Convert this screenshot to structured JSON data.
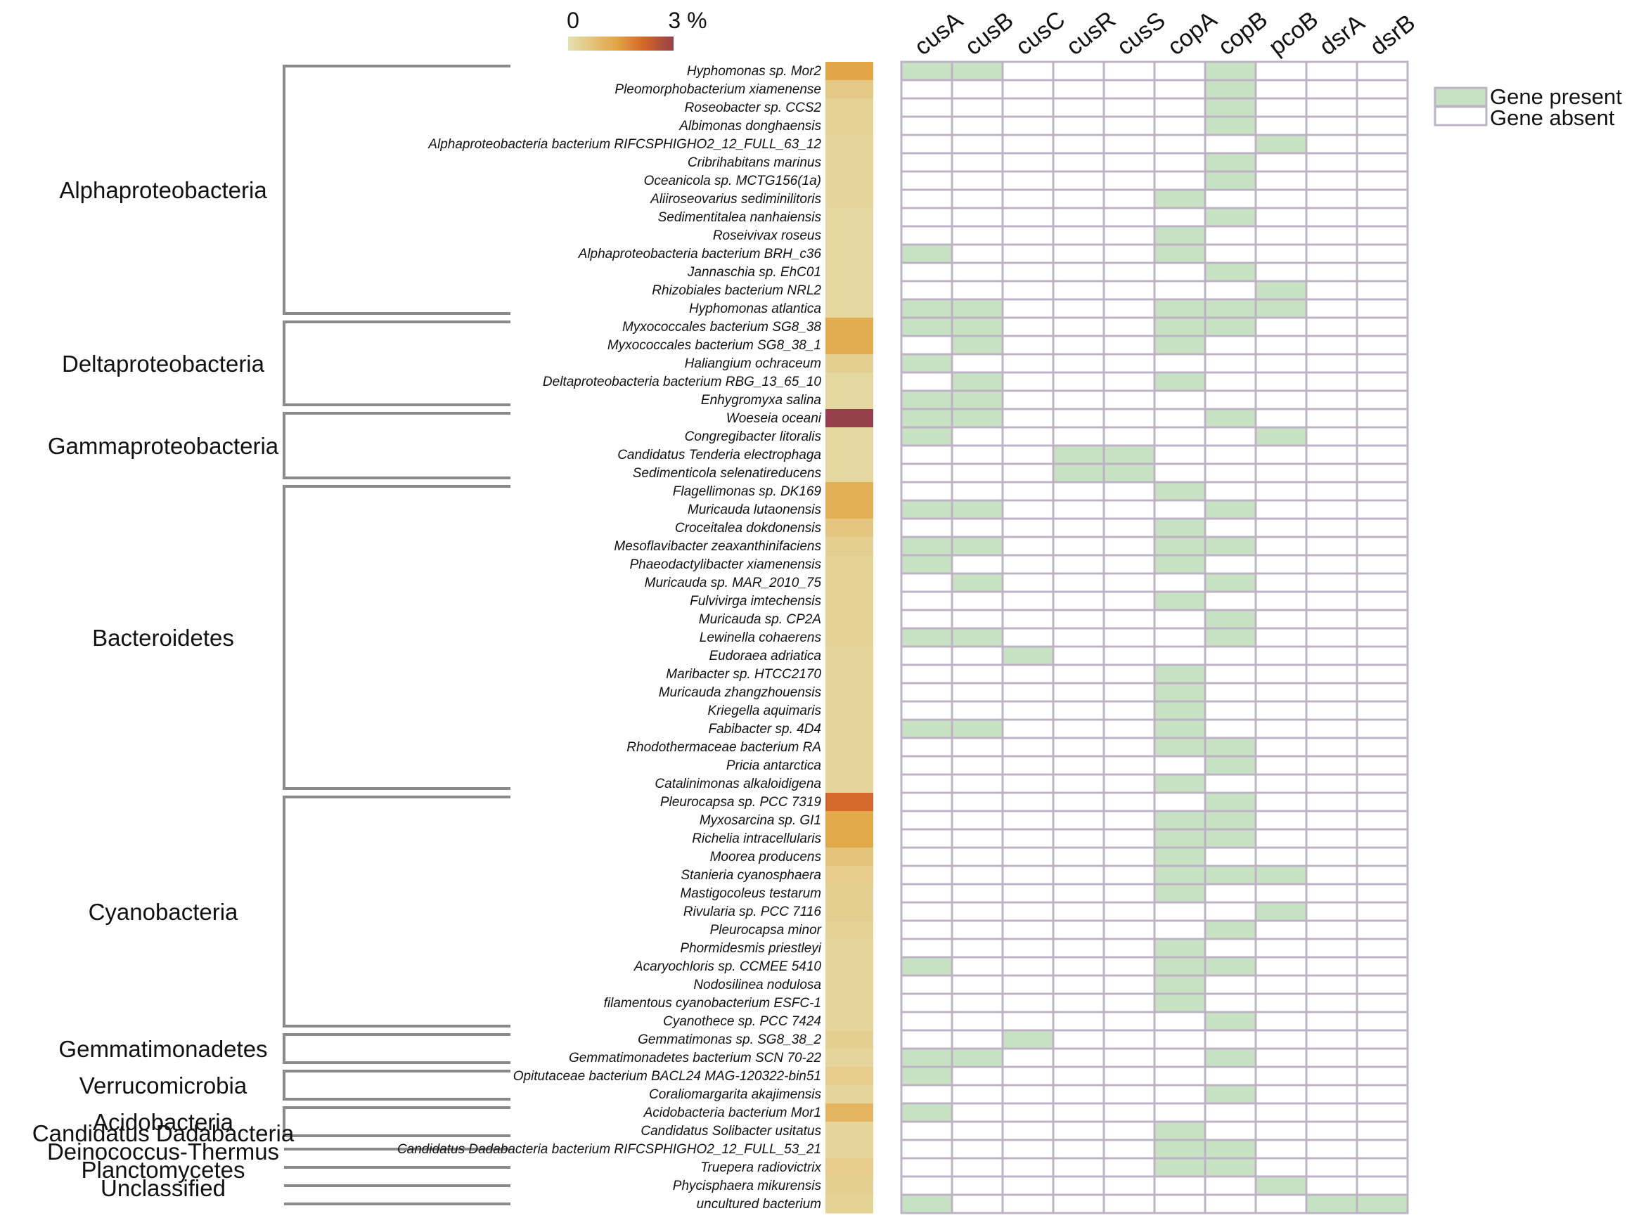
{
  "chart_data": {
    "type": "heatmap",
    "title": "",
    "color_scale": {
      "min_label": "0",
      "max_label": "3 %",
      "min": 0,
      "max": 3,
      "colors": [
        "#e6e0b0",
        "#e2a747",
        "#d4662a",
        "#94404a"
      ]
    },
    "genes": [
      "cusA",
      "cusB",
      "cusC",
      "cusR",
      "cusS",
      "copA",
      "copB",
      "pcoB",
      "dsrA",
      "dsrB"
    ],
    "legend": {
      "present_label": "Gene present",
      "absent_label": "Gene absent",
      "present_color": "#c6e2c2",
      "absent_color": "#ffffff",
      "border_color": "#bdb3c4"
    },
    "groups": [
      {
        "name": "Alphaproteobacteria",
        "first": 0,
        "last": 13
      },
      {
        "name": "Deltaproteobacteria",
        "first": 14,
        "last": 18
      },
      {
        "name": "Gammaproteobacteria",
        "first": 19,
        "last": 22
      },
      {
        "name": "Bacteroidetes",
        "first": 23,
        "last": 39
      },
      {
        "name": "Cyanobacteria",
        "first": 40,
        "last": 52
      },
      {
        "name": "Gemmatimonadetes",
        "first": 53,
        "last": 54
      },
      {
        "name": "Verrucomicrobia",
        "first": 55,
        "last": 56
      },
      {
        "name": "Acidobacteria",
        "first": 57,
        "last": 58
      },
      {
        "name": "Candidatus Dadabacteria",
        "first": 59,
        "last": 59
      },
      {
        "name": "Deinococcus-Thermus",
        "first": 60,
        "last": 60
      },
      {
        "name": "Planctomycetes",
        "first": 61,
        "last": 61
      },
      {
        "name": "Unclassified",
        "first": 62,
        "last": 62
      }
    ],
    "taxa": [
      {
        "name": "Hyphomonas sp. Mor2",
        "abundance": 1.0,
        "genes": [
          1,
          1,
          0,
          0,
          0,
          0,
          1,
          0,
          0,
          0
        ]
      },
      {
        "name": "Pleomorphobacterium xiamenense",
        "abundance": 0.4,
        "genes": [
          0,
          0,
          0,
          0,
          0,
          0,
          1,
          0,
          0,
          0
        ]
      },
      {
        "name": "Roseobacter sp. CCS2",
        "abundance": 0.25,
        "genes": [
          0,
          0,
          0,
          0,
          0,
          0,
          1,
          0,
          0,
          0
        ]
      },
      {
        "name": "Albimonas donghaensis",
        "abundance": 0.25,
        "genes": [
          0,
          0,
          0,
          0,
          0,
          0,
          1,
          0,
          0,
          0
        ]
      },
      {
        "name": "Alphaproteobacteria bacterium RIFCSPHIGHO2_12_FULL_63_12",
        "abundance": 0.2,
        "genes": [
          0,
          0,
          0,
          0,
          0,
          0,
          0,
          1,
          0,
          0
        ]
      },
      {
        "name": "Cribrihabitans marinus",
        "abundance": 0.2,
        "genes": [
          0,
          0,
          0,
          0,
          0,
          0,
          1,
          0,
          0,
          0
        ]
      },
      {
        "name": "Oceanicola sp. MCTG156(1a)",
        "abundance": 0.2,
        "genes": [
          0,
          0,
          0,
          0,
          0,
          0,
          1,
          0,
          0,
          0
        ]
      },
      {
        "name": "Aliiroseovarius sediminilitoris",
        "abundance": 0.2,
        "genes": [
          0,
          0,
          0,
          0,
          0,
          1,
          0,
          0,
          0,
          0
        ]
      },
      {
        "name": "Sedimentitalea nanhaiensis",
        "abundance": 0.15,
        "genes": [
          0,
          0,
          0,
          0,
          0,
          0,
          1,
          0,
          0,
          0
        ]
      },
      {
        "name": "Roseivivax roseus",
        "abundance": 0.15,
        "genes": [
          0,
          0,
          0,
          0,
          0,
          1,
          0,
          0,
          0,
          0
        ]
      },
      {
        "name": "Alphaproteobacteria bacterium BRH_c36",
        "abundance": 0.15,
        "genes": [
          1,
          0,
          0,
          0,
          0,
          1,
          0,
          0,
          0,
          0
        ]
      },
      {
        "name": "Jannaschia sp. EhC01",
        "abundance": 0.15,
        "genes": [
          0,
          0,
          0,
          0,
          0,
          0,
          1,
          0,
          0,
          0
        ]
      },
      {
        "name": "Rhizobiales bacterium NRL2",
        "abundance": 0.15,
        "genes": [
          0,
          0,
          0,
          0,
          0,
          0,
          0,
          1,
          0,
          0
        ]
      },
      {
        "name": "Hyphomonas atlantica",
        "abundance": 0.15,
        "genes": [
          1,
          1,
          0,
          0,
          0,
          1,
          1,
          1,
          0,
          0
        ]
      },
      {
        "name": "Myxococcales bacterium SG8_38",
        "abundance": 0.9,
        "genes": [
          1,
          1,
          0,
          0,
          0,
          1,
          1,
          0,
          0,
          0
        ]
      },
      {
        "name": "Myxococcales bacterium SG8_38_1",
        "abundance": 0.9,
        "genes": [
          0,
          1,
          0,
          0,
          0,
          1,
          0,
          0,
          0,
          0
        ]
      },
      {
        "name": "Haliangium ochraceum",
        "abundance": 0.3,
        "genes": [
          1,
          0,
          0,
          0,
          0,
          0,
          0,
          0,
          0,
          0
        ]
      },
      {
        "name": "Deltaproteobacteria bacterium RBG_13_65_10",
        "abundance": 0.15,
        "genes": [
          0,
          1,
          0,
          0,
          0,
          1,
          0,
          0,
          0,
          0
        ]
      },
      {
        "name": "Enhygromyxa salina",
        "abundance": 0.15,
        "genes": [
          1,
          1,
          0,
          0,
          0,
          0,
          0,
          0,
          0,
          0
        ]
      },
      {
        "name": "Woeseia oceani",
        "abundance": 3.0,
        "genes": [
          1,
          1,
          0,
          0,
          0,
          0,
          1,
          0,
          0,
          0
        ]
      },
      {
        "name": "Congregibacter litoralis",
        "abundance": 0.15,
        "genes": [
          1,
          0,
          0,
          0,
          0,
          0,
          0,
          1,
          0,
          0
        ]
      },
      {
        "name": "Candidatus Tenderia electrophaga",
        "abundance": 0.15,
        "genes": [
          0,
          0,
          0,
          1,
          1,
          0,
          0,
          0,
          0,
          0
        ]
      },
      {
        "name": "Sedimenticola selenatireducens",
        "abundance": 0.15,
        "genes": [
          0,
          0,
          0,
          1,
          1,
          0,
          0,
          0,
          0,
          0
        ]
      },
      {
        "name": "Flagellimonas sp. DK169",
        "abundance": 0.85,
        "genes": [
          0,
          0,
          0,
          0,
          0,
          1,
          0,
          0,
          0,
          0
        ]
      },
      {
        "name": "Muricauda lutaonensis",
        "abundance": 0.85,
        "genes": [
          1,
          1,
          0,
          0,
          0,
          0,
          1,
          0,
          0,
          0
        ]
      },
      {
        "name": "Croceitalea dokdonensis",
        "abundance": 0.45,
        "genes": [
          0,
          0,
          0,
          0,
          0,
          1,
          0,
          0,
          0,
          0
        ]
      },
      {
        "name": "Mesoflavibacter zeaxanthinifaciens",
        "abundance": 0.3,
        "genes": [
          1,
          1,
          0,
          0,
          0,
          1,
          1,
          0,
          0,
          0
        ]
      },
      {
        "name": "Phaeodactylibacter xiamenensis",
        "abundance": 0.25,
        "genes": [
          1,
          0,
          0,
          0,
          0,
          1,
          0,
          0,
          0,
          0
        ]
      },
      {
        "name": "Muricauda sp. MAR_2010_75",
        "abundance": 0.25,
        "genes": [
          0,
          1,
          0,
          0,
          0,
          0,
          1,
          0,
          0,
          0
        ]
      },
      {
        "name": "Fulvivirga imtechensis",
        "abundance": 0.25,
        "genes": [
          0,
          0,
          0,
          0,
          0,
          1,
          0,
          0,
          0,
          0
        ]
      },
      {
        "name": "Muricauda sp. CP2A",
        "abundance": 0.25,
        "genes": [
          0,
          0,
          0,
          0,
          0,
          0,
          1,
          0,
          0,
          0
        ]
      },
      {
        "name": "Lewinella cohaerens",
        "abundance": 0.25,
        "genes": [
          1,
          1,
          0,
          0,
          0,
          0,
          1,
          0,
          0,
          0
        ]
      },
      {
        "name": "Eudoraea adriatica",
        "abundance": 0.2,
        "genes": [
          0,
          0,
          1,
          0,
          0,
          0,
          0,
          0,
          0,
          0
        ]
      },
      {
        "name": "Maribacter sp. HTCC2170",
        "abundance": 0.2,
        "genes": [
          0,
          0,
          0,
          0,
          0,
          1,
          0,
          0,
          0,
          0
        ]
      },
      {
        "name": "Muricauda zhangzhouensis",
        "abundance": 0.2,
        "genes": [
          0,
          0,
          0,
          0,
          0,
          1,
          0,
          0,
          0,
          0
        ]
      },
      {
        "name": "Kriegella aquimaris",
        "abundance": 0.2,
        "genes": [
          0,
          0,
          0,
          0,
          0,
          1,
          0,
          0,
          0,
          0
        ]
      },
      {
        "name": "Fabibacter sp. 4D4",
        "abundance": 0.2,
        "genes": [
          1,
          1,
          0,
          0,
          0,
          1,
          0,
          0,
          0,
          0
        ]
      },
      {
        "name": "Rhodothermaceae bacterium RA",
        "abundance": 0.2,
        "genes": [
          0,
          0,
          0,
          0,
          0,
          1,
          1,
          0,
          0,
          0
        ]
      },
      {
        "name": "Pricia antarctica",
        "abundance": 0.2,
        "genes": [
          0,
          0,
          0,
          0,
          0,
          0,
          1,
          0,
          0,
          0
        ]
      },
      {
        "name": "Catalinimonas alkaloidigena",
        "abundance": 0.2,
        "genes": [
          0,
          0,
          0,
          0,
          0,
          1,
          0,
          0,
          0,
          0
        ]
      },
      {
        "name": "Pleurocapsa sp. PCC 7319",
        "abundance": 1.9,
        "genes": [
          0,
          0,
          0,
          0,
          0,
          0,
          1,
          0,
          0,
          0
        ]
      },
      {
        "name": "Myxosarcina sp. GI1",
        "abundance": 0.95,
        "genes": [
          0,
          0,
          0,
          0,
          0,
          1,
          1,
          0,
          0,
          0
        ]
      },
      {
        "name": "Richelia intracellularis",
        "abundance": 0.95,
        "genes": [
          0,
          0,
          0,
          0,
          0,
          1,
          1,
          0,
          0,
          0
        ]
      },
      {
        "name": "Moorea producens",
        "abundance": 0.5,
        "genes": [
          0,
          0,
          0,
          0,
          0,
          1,
          0,
          0,
          0,
          0
        ]
      },
      {
        "name": "Stanieria cyanosphaera",
        "abundance": 0.35,
        "genes": [
          0,
          0,
          0,
          0,
          0,
          1,
          1,
          1,
          0,
          0
        ]
      },
      {
        "name": "Mastigocoleus testarum",
        "abundance": 0.3,
        "genes": [
          0,
          0,
          0,
          0,
          0,
          1,
          0,
          0,
          0,
          0
        ]
      },
      {
        "name": "Rivularia sp. PCC 7116",
        "abundance": 0.3,
        "genes": [
          0,
          0,
          0,
          0,
          0,
          0,
          0,
          1,
          0,
          0
        ]
      },
      {
        "name": "Pleurocapsa minor",
        "abundance": 0.25,
        "genes": [
          0,
          0,
          0,
          0,
          0,
          0,
          1,
          0,
          0,
          0
        ]
      },
      {
        "name": "Phormidesmis priestleyi",
        "abundance": 0.2,
        "genes": [
          0,
          0,
          0,
          0,
          0,
          1,
          0,
          0,
          0,
          0
        ]
      },
      {
        "name": "Acaryochloris sp. CCMEE 5410",
        "abundance": 0.2,
        "genes": [
          1,
          0,
          0,
          0,
          0,
          1,
          1,
          0,
          0,
          0
        ]
      },
      {
        "name": "Nodosilinea nodulosa",
        "abundance": 0.2,
        "genes": [
          0,
          0,
          0,
          0,
          0,
          1,
          0,
          0,
          0,
          0
        ]
      },
      {
        "name": "filamentous cyanobacterium ESFC-1",
        "abundance": 0.2,
        "genes": [
          0,
          0,
          0,
          0,
          0,
          1,
          0,
          0,
          0,
          0
        ]
      },
      {
        "name": "Cyanothece sp. PCC 7424",
        "abundance": 0.2,
        "genes": [
          0,
          0,
          0,
          0,
          0,
          0,
          1,
          0,
          0,
          0
        ]
      },
      {
        "name": "Gemmatimonas sp. SG8_38_2",
        "abundance": 0.3,
        "genes": [
          0,
          0,
          1,
          0,
          0,
          0,
          0,
          0,
          0,
          0
        ]
      },
      {
        "name": "Gemmatimonadetes bacterium SCN 70-22",
        "abundance": 0.2,
        "genes": [
          1,
          1,
          0,
          0,
          0,
          0,
          1,
          0,
          0,
          0
        ]
      },
      {
        "name": "Opitutaceae bacterium BACL24 MAG-120322-bin51",
        "abundance": 0.35,
        "genes": [
          1,
          0,
          0,
          0,
          0,
          0,
          0,
          0,
          0,
          0
        ]
      },
      {
        "name": "Coraliomargarita akajimensis",
        "abundance": 0.2,
        "genes": [
          0,
          0,
          0,
          0,
          0,
          0,
          1,
          0,
          0,
          0
        ]
      },
      {
        "name": "Acidobacteria bacterium Mor1",
        "abundance": 0.75,
        "genes": [
          1,
          0,
          0,
          0,
          0,
          0,
          0,
          0,
          0,
          0
        ]
      },
      {
        "name": "Candidatus Solibacter usitatus",
        "abundance": 0.2,
        "genes": [
          0,
          0,
          0,
          0,
          0,
          1,
          0,
          0,
          0,
          0
        ]
      },
      {
        "name": "Candidatus Dadabacteria bacterium RIFCSPHIGHO2_12_FULL_53_21",
        "abundance": 0.2,
        "genes": [
          0,
          0,
          0,
          0,
          0,
          1,
          1,
          0,
          0,
          0
        ]
      },
      {
        "name": "Truepera radiovictrix",
        "abundance": 0.35,
        "genes": [
          0,
          0,
          0,
          0,
          0,
          1,
          1,
          0,
          0,
          0
        ]
      },
      {
        "name": "Phycisphaera mikurensis",
        "abundance": 0.3,
        "genes": [
          0,
          0,
          0,
          0,
          0,
          0,
          0,
          1,
          0,
          0
        ]
      },
      {
        "name": "uncultured bacterium",
        "abundance": 0.25,
        "genes": [
          1,
          0,
          0,
          0,
          0,
          0,
          0,
          0,
          1,
          1
        ]
      }
    ]
  }
}
